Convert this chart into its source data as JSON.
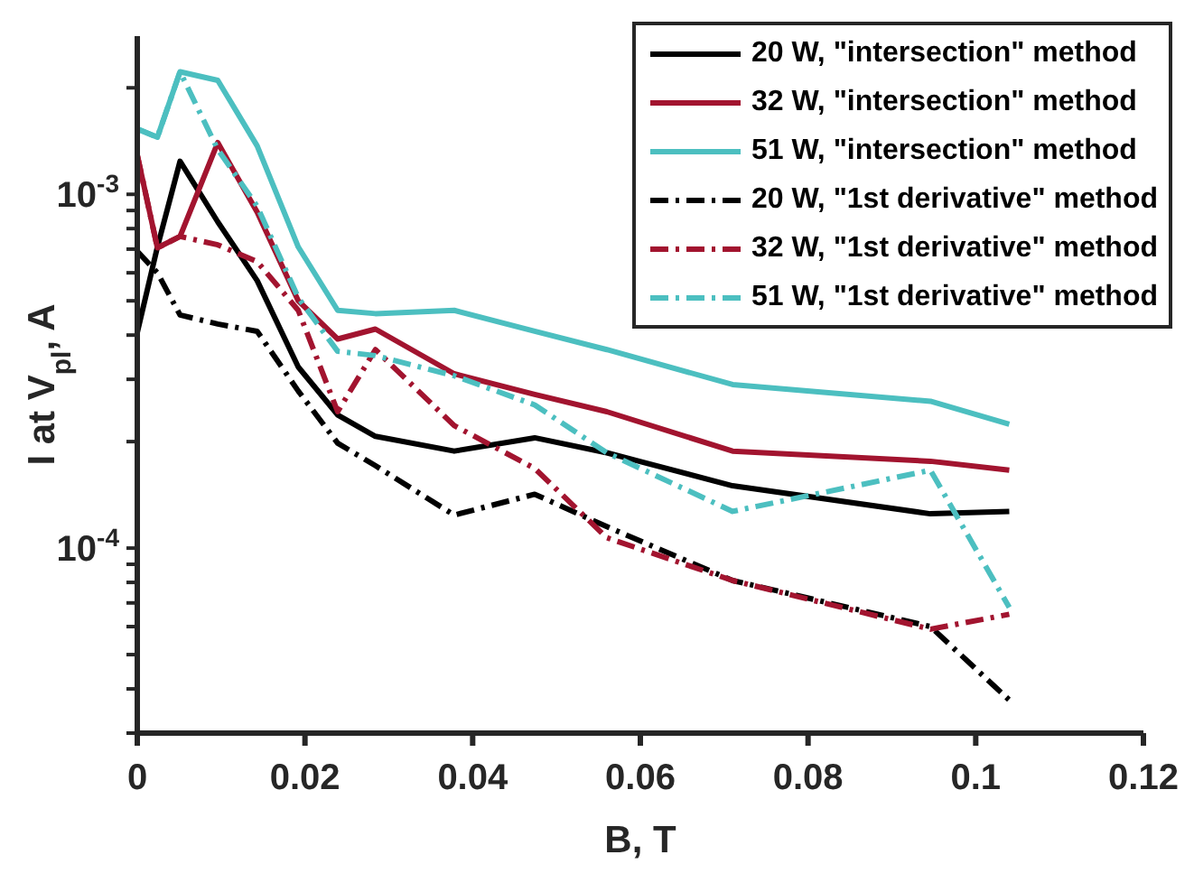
{
  "chart_data": {
    "type": "line",
    "xlabel": "B, T",
    "ylabel": "I at V$_{pl}$, A",
    "log": "y",
    "x": [
      0,
      0.0024,
      0.0051,
      0.0096,
      0.0143,
      0.0192,
      0.0239,
      0.0284,
      0.0378,
      0.0474,
      0.056,
      0.071,
      0.0946,
      0.104
    ],
    "xlim": [
      0,
      0.12
    ],
    "xticks": [
      0,
      0.02,
      0.04,
      0.06,
      0.08,
      0.1,
      0.12
    ],
    "ylim": [
      3e-05,
      0.0028
    ],
    "yticks": [
      {
        "value": 3e-05,
        "label": null
      },
      {
        "value": 4e-05,
        "label": null
      },
      {
        "value": 5e-05,
        "label": null
      },
      {
        "value": 6e-05,
        "label": null
      },
      {
        "value": 7e-05,
        "label": null
      },
      {
        "value": 8e-05,
        "label": null
      },
      {
        "value": 9e-05,
        "label": null
      },
      {
        "value": 0.0001,
        "label": "10$^{-4}$"
      },
      {
        "value": 0.0002,
        "label": null
      },
      {
        "value": 0.0003,
        "label": null
      },
      {
        "value": 0.0004,
        "label": null
      },
      {
        "value": 0.0005,
        "label": null
      },
      {
        "value": 0.0006,
        "label": null
      },
      {
        "value": 0.0007,
        "label": null
      },
      {
        "value": 0.0008,
        "label": null
      },
      {
        "value": 0.0009,
        "label": null
      },
      {
        "value": 0.001,
        "label": "10$^{-3}$"
      },
      {
        "value": 0.002,
        "label": null
      }
    ],
    "grid": false,
    "legend": "top right",
    "marker": "none",
    "series": [
      {
        "name": "20 W, \"intersection\" method",
        "color": "#000000",
        "line_style": "solid",
        "values": [
          0.000407,
          0.00071,
          0.00124,
          0.000836,
          0.00057,
          0.000325,
          0.000238,
          0.000207,
          0.000188,
          0.000205,
          0.000186,
          0.00015,
          0.000125,
          0.000127
        ]
      },
      {
        "name": "32 W, \"intersection\" method",
        "color": "#a2142f",
        "line_style": "solid",
        "values": [
          0.00129,
          0.000706,
          0.00076,
          0.0014,
          0.00089,
          0.0005,
          0.00039,
          0.000416,
          0.000311,
          0.000272,
          0.000243,
          0.000188,
          0.000176,
          0.000166
        ]
      },
      {
        "name": "51 W, \"intersection\" method",
        "color": "#4cbfc0",
        "line_style": "solid",
        "values": [
          0.00153,
          0.00145,
          0.00222,
          0.0021,
          0.00137,
          0.00071,
          0.00047,
          0.00046,
          0.00047,
          0.00041,
          0.000364,
          0.00029,
          0.00026,
          0.000224
        ]
      },
      {
        "name": "20 W, \"1st derivative\" method",
        "color": "#000000",
        "line_style": "dashdot",
        "values": [
          0.00069,
          0.0006,
          0.000456,
          0.00043,
          0.00041,
          0.000278,
          0.000198,
          0.000171,
          0.000124,
          0.000142,
          0.000115,
          8.1e-05,
          6e-05,
          3.72e-05
        ]
      },
      {
        "name": "32 W, \"1st derivative\" method",
        "color": "#a2142f",
        "line_style": "dashdot",
        "values": [
          0.00129,
          0.000706,
          0.00076,
          0.00072,
          0.000645,
          0.00047,
          0.000243,
          0.000364,
          0.000222,
          0.000168,
          0.000107,
          8.1e-05,
          5.9e-05,
          6.5e-05
        ]
      },
      {
        "name": "51 W, \"1st derivative\" method",
        "color": "#4cbfc0",
        "line_style": "dashdot",
        "values": [
          0.00153,
          0.00145,
          0.00222,
          0.00134,
          0.000925,
          0.00051,
          0.00036,
          0.00035,
          0.000307,
          0.000254,
          0.000186,
          0.000127,
          0.000166,
          6.8e-05
        ]
      }
    ]
  }
}
